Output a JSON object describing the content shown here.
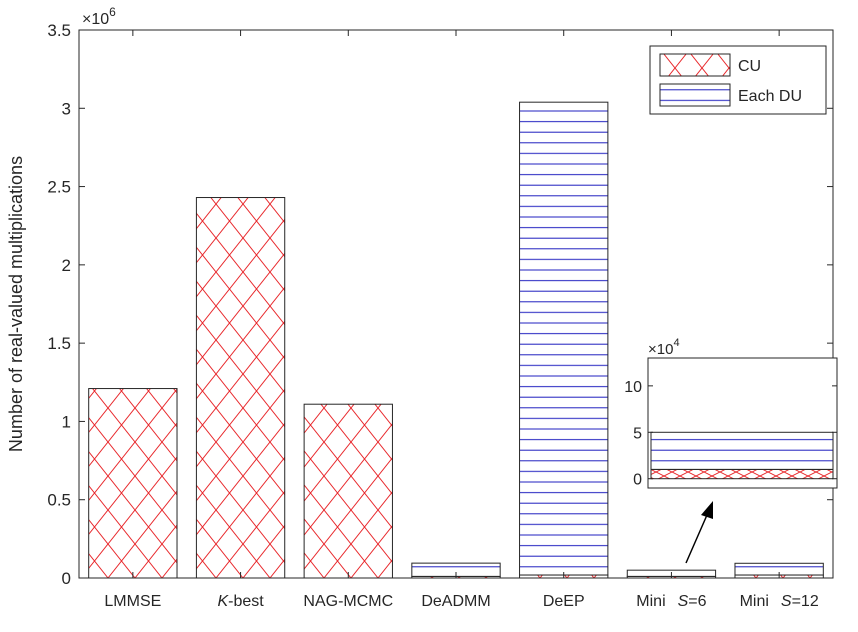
{
  "chart_data": {
    "type": "bar",
    "stacked": true,
    "title": "",
    "xlabel": "",
    "ylabel": "Number of real-valued multiplications",
    "exponent_label": "×10",
    "exponent_value": "6",
    "ylim": [
      0,
      3500000
    ],
    "yticks": [
      0,
      500000,
      1000000,
      1500000,
      2000000,
      2500000,
      3000000,
      3500000
    ],
    "ytick_labels": [
      "0",
      "0.5",
      "1",
      "1.5",
      "2",
      "2.5",
      "3",
      "3.5"
    ],
    "categories": [
      {
        "italic": "",
        "text": "LMMSE",
        "extra": ""
      },
      {
        "italic": "K",
        "text": "-best",
        "extra": ""
      },
      {
        "italic": "",
        "text": "NAG-MCMC",
        "extra": ""
      },
      {
        "italic": "",
        "text": "DeADMM",
        "extra": ""
      },
      {
        "italic": "",
        "text": "DeEP",
        "extra": ""
      },
      {
        "italic": "",
        "text": "Mini",
        "extra": "S=6"
      },
      {
        "italic": "",
        "text": "Mini",
        "extra": "S=12"
      }
    ],
    "series": [
      {
        "name": "CU",
        "pattern": "crosshatch",
        "color": "#e8262a",
        "values": [
          1210000,
          2430000,
          1110000,
          10000,
          19000,
          10000,
          19000
        ]
      },
      {
        "name": "Each DU",
        "pattern": "horizontal-lines",
        "color": "#1f1fbf",
        "values": [
          0,
          0,
          0,
          85000,
          3020000,
          40000,
          75000
        ]
      }
    ],
    "legend": {
      "position": "top-right",
      "entries": [
        "CU",
        "Each DU"
      ]
    },
    "inset": {
      "description": "zoom of Mini S=6",
      "exponent_label": "×10",
      "exponent_value": "4",
      "ylim": [
        -1,
        13
      ],
      "yticks": [
        0,
        5,
        10
      ],
      "ytick_labels": [
        "0",
        "5",
        "10"
      ],
      "cu_value": 1,
      "du_value": 4
    }
  }
}
